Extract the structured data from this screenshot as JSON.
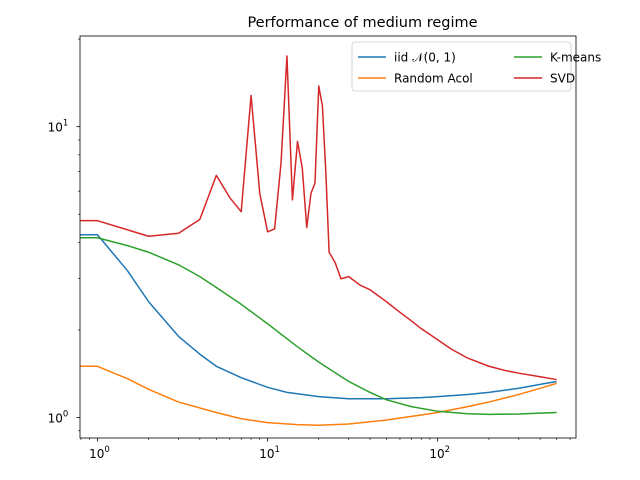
{
  "chart_data": {
    "type": "line",
    "title": "Performance of medium regime",
    "xlabel": "",
    "ylabel": "",
    "xscale": "log",
    "yscale": "log",
    "xlim": [
      0.79,
      650
    ],
    "ylim": [
      0.85,
      20.5
    ],
    "x_ticks": [
      {
        "value": 1,
        "base": "10",
        "exp": "0"
      },
      {
        "value": 10,
        "base": "10",
        "exp": "1"
      },
      {
        "value": 100,
        "base": "10",
        "exp": "2"
      }
    ],
    "y_ticks": [
      {
        "value": 1,
        "base": "10",
        "exp": "0"
      },
      {
        "value": 10,
        "base": "10",
        "exp": "1"
      }
    ],
    "grid": false,
    "legend": {
      "placement": "top-right",
      "columns": 2
    },
    "series": [
      {
        "name": "iid 𝒩(0, 1)",
        "color": "#1f77b4",
        "points": [
          [
            0.79,
            4.25
          ],
          [
            1,
            4.25
          ],
          [
            1.5,
            3.2
          ],
          [
            2,
            2.5
          ],
          [
            3,
            1.9
          ],
          [
            4,
            1.65
          ],
          [
            5,
            1.5
          ],
          [
            7,
            1.37
          ],
          [
            10,
            1.27
          ],
          [
            13,
            1.22
          ],
          [
            20,
            1.18
          ],
          [
            30,
            1.16
          ],
          [
            50,
            1.16
          ],
          [
            80,
            1.17
          ],
          [
            100,
            1.18
          ],
          [
            150,
            1.2
          ],
          [
            200,
            1.22
          ],
          [
            300,
            1.26
          ],
          [
            400,
            1.3
          ],
          [
            500,
            1.33
          ]
        ]
      },
      {
        "name": "Random Acol",
        "color": "#ff7f0e",
        "points": [
          [
            0.79,
            1.5
          ],
          [
            1,
            1.5
          ],
          [
            1.5,
            1.36
          ],
          [
            2,
            1.25
          ],
          [
            3,
            1.13
          ],
          [
            5,
            1.04
          ],
          [
            7,
            0.99
          ],
          [
            10,
            0.96
          ],
          [
            15,
            0.945
          ],
          [
            20,
            0.94
          ],
          [
            30,
            0.95
          ],
          [
            50,
            0.98
          ],
          [
            80,
            1.02
          ],
          [
            100,
            1.04
          ],
          [
            150,
            1.09
          ],
          [
            200,
            1.13
          ],
          [
            300,
            1.2
          ],
          [
            400,
            1.26
          ],
          [
            500,
            1.31
          ]
        ]
      },
      {
        "name": "K-means",
        "color": "#2ca02c",
        "points": [
          [
            0.79,
            4.15
          ],
          [
            1,
            4.15
          ],
          [
            1.5,
            3.9
          ],
          [
            2,
            3.7
          ],
          [
            3,
            3.35
          ],
          [
            4,
            3.05
          ],
          [
            5,
            2.8
          ],
          [
            7,
            2.45
          ],
          [
            10,
            2.1
          ],
          [
            15,
            1.75
          ],
          [
            20,
            1.55
          ],
          [
            30,
            1.33
          ],
          [
            40,
            1.22
          ],
          [
            50,
            1.15
          ],
          [
            70,
            1.09
          ],
          [
            100,
            1.05
          ],
          [
            150,
            1.03
          ],
          [
            200,
            1.025
          ],
          [
            300,
            1.028
          ],
          [
            400,
            1.035
          ],
          [
            500,
            1.04
          ]
        ]
      },
      {
        "name": "SVD",
        "color": "#d62728",
        "points": [
          [
            0.79,
            4.75
          ],
          [
            1,
            4.75
          ],
          [
            2,
            4.2
          ],
          [
            3,
            4.3
          ],
          [
            4,
            4.8
          ],
          [
            5,
            6.8
          ],
          [
            6,
            5.7
          ],
          [
            7,
            5.1
          ],
          [
            8,
            12.8
          ],
          [
            9,
            5.9
          ],
          [
            10,
            4.35
          ],
          [
            11,
            4.45
          ],
          [
            12,
            7.5
          ],
          [
            13,
            17.5
          ],
          [
            14,
            5.6
          ],
          [
            15,
            8.9
          ],
          [
            16,
            7.2
          ],
          [
            17,
            4.5
          ],
          [
            18,
            5.9
          ],
          [
            19,
            6.4
          ],
          [
            20,
            13.8
          ],
          [
            21,
            11.8
          ],
          [
            22,
            7.0
          ],
          [
            23,
            3.7
          ],
          [
            25,
            3.4
          ],
          [
            27,
            3.0
          ],
          [
            30,
            3.05
          ],
          [
            35,
            2.85
          ],
          [
            40,
            2.75
          ],
          [
            50,
            2.5
          ],
          [
            60,
            2.3
          ],
          [
            70,
            2.15
          ],
          [
            80,
            2.02
          ],
          [
            100,
            1.85
          ],
          [
            120,
            1.72
          ],
          [
            150,
            1.6
          ],
          [
            200,
            1.5
          ],
          [
            250,
            1.45
          ],
          [
            300,
            1.42
          ],
          [
            400,
            1.38
          ],
          [
            500,
            1.35
          ]
        ]
      }
    ]
  }
}
